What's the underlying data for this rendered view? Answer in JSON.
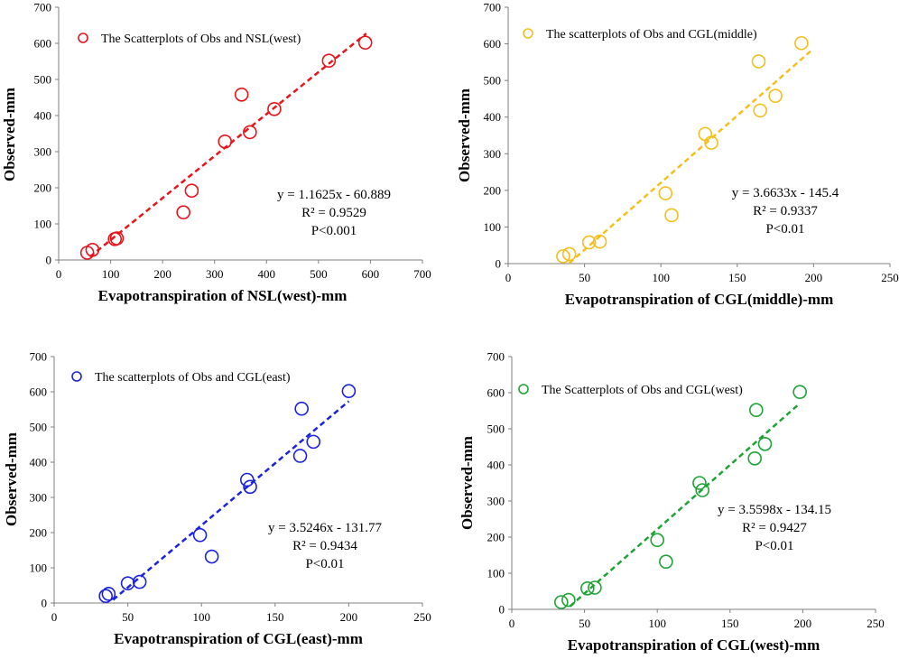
{
  "chart_data": [
    {
      "type": "scatter",
      "color": "#e8141b",
      "legend": "The Scatterplots of Obs and NSL(west)",
      "xlabel": "Evapotranspiration of NSL(west)-mm",
      "ylabel": "Observed-mm",
      "xlim": [
        0,
        700
      ],
      "ylim": [
        0,
        700
      ],
      "xticks": [
        "0",
        "100",
        "200",
        "300",
        "400",
        "500",
        "600",
        "700"
      ],
      "yticks": [
        "0",
        "100",
        "200",
        "300",
        "400",
        "500",
        "600",
        "700"
      ],
      "x": [
        55,
        65,
        108,
        112,
        240,
        256,
        320,
        352,
        368,
        415,
        520,
        590
      ],
      "y": [
        20,
        28,
        58,
        60,
        132,
        192,
        328,
        458,
        354,
        418,
        552,
        602
      ],
      "fit": {
        "slope": 1.1625,
        "intercept": -60.889,
        "x_range": [
          60,
          592
        ]
      },
      "annotation": [
        "y = 1.1625x - 60.889",
        "R² = 0.9529",
        "P<0.001"
      ]
    },
    {
      "type": "scatter",
      "color": "#f4bf1a",
      "legend": "The scatterplots of Obs and CGL(middle)",
      "xlabel": "Evapotranspiration of CGL(middle)-mm",
      "ylabel": "Observed-mm",
      "xlim": [
        0,
        250
      ],
      "ylim": [
        0,
        700
      ],
      "xticks": [
        "0",
        "50",
        "100",
        "150",
        "200",
        "250"
      ],
      "yticks": [
        "0",
        "100",
        "200",
        "300",
        "400",
        "500",
        "600",
        "700"
      ],
      "x": [
        36,
        40,
        53,
        60,
        103,
        107,
        129,
        133,
        164,
        165,
        175,
        192
      ],
      "y": [
        20,
        26,
        58,
        60,
        192,
        132,
        354,
        330,
        552,
        418,
        458,
        602
      ],
      "fit": {
        "slope": 3.6633,
        "intercept": -145.4,
        "x_range": [
          40,
          198
        ]
      },
      "annotation": [
        "y = 3.6633x - 145.4",
        "R² = 0.9337",
        "P<0.01"
      ]
    },
    {
      "type": "scatter",
      "color": "#1b22e0",
      "legend": "The scatterplots of Obs and CGL(east)",
      "xlabel": "Evapotranspiration of CGL(east)-mm",
      "ylabel": "Observed-mm",
      "xlim": [
        0,
        250
      ],
      "ylim": [
        0,
        700
      ],
      "xticks": [
        "0",
        "50",
        "100",
        "150",
        "200",
        "250"
      ],
      "yticks": [
        "0",
        "100",
        "200",
        "300",
        "400",
        "500",
        "600",
        "700"
      ],
      "x": [
        35,
        37,
        50,
        58,
        99,
        107,
        131,
        133,
        167,
        168,
        176,
        200
      ],
      "y": [
        20,
        26,
        56,
        60,
        193,
        132,
        350,
        330,
        418,
        552,
        458,
        602
      ],
      "fit": {
        "slope": 3.5246,
        "intercept": -131.77,
        "x_range": [
          40,
          200
        ]
      },
      "annotation": [
        "y = 3.5246x - 131.77",
        "R² = 0.9434",
        "P<0.01"
      ]
    },
    {
      "type": "scatter",
      "color": "#1fa337",
      "legend": "The Scatterplots of Obs and CGL(west)",
      "xlabel": "Evapotranspiration of CGL(west)-mm",
      "ylabel": "Observed-mm",
      "xlim": [
        0,
        250
      ],
      "ylim": [
        0,
        700
      ],
      "xticks": [
        "0",
        "50",
        "100",
        "150",
        "200",
        "250"
      ],
      "yticks": [
        "0",
        "100",
        "200",
        "300",
        "400",
        "500",
        "600",
        "700"
      ],
      "x": [
        34,
        39,
        52,
        57,
        100,
        106,
        129,
        131,
        167,
        168,
        174,
        198
      ],
      "y": [
        20,
        26,
        58,
        60,
        192,
        132,
        350,
        330,
        418,
        552,
        458,
        602
      ],
      "fit": {
        "slope": 3.5598,
        "intercept": -134.15,
        "x_range": [
          40,
          198
        ]
      },
      "annotation": [
        "y = 3.5598x - 134.15",
        "R² = 0.9427",
        "P<0.01"
      ]
    }
  ]
}
